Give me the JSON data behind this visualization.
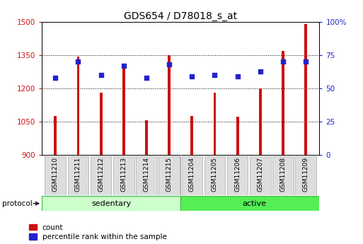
{
  "title": "GDS654 / D78018_s_at",
  "samples": [
    "GSM11210",
    "GSM11211",
    "GSM11212",
    "GSM11213",
    "GSM11214",
    "GSM11215",
    "GSM11204",
    "GSM11205",
    "GSM11206",
    "GSM11207",
    "GSM11208",
    "GSM11209"
  ],
  "count_values": [
    1075,
    1345,
    1180,
    1295,
    1057,
    1350,
    1075,
    1180,
    1072,
    1200,
    1370,
    1490
  ],
  "percentile_values": [
    58,
    70,
    60,
    67,
    58,
    68,
    59,
    60,
    59,
    63,
    70,
    70
  ],
  "bar_base": 900,
  "ylim_left": [
    900,
    1500
  ],
  "ylim_right": [
    0,
    100
  ],
  "yticks_left": [
    900,
    1050,
    1200,
    1350,
    1500
  ],
  "yticks_right": [
    0,
    25,
    50,
    75,
    100
  ],
  "bar_color": "#cc1111",
  "dot_color": "#2222cc",
  "sedentary_label": "sedentary",
  "active_label": "active",
  "protocol_label": "protocol",
  "legend_count_label": "count",
  "legend_pct_label": "percentile rank within the sample",
  "bar_width": 0.12,
  "dot_size": 22,
  "grid_color": "black",
  "grid_linestyle": "dotted",
  "sedentary_color": "#ccffcc",
  "active_color": "#55ee55",
  "left_tick_color": "#cc1111",
  "right_tick_color": "#2222cc",
  "n_sedentary": 6,
  "n_active": 6,
  "fig_width": 5.13,
  "fig_height": 3.45
}
